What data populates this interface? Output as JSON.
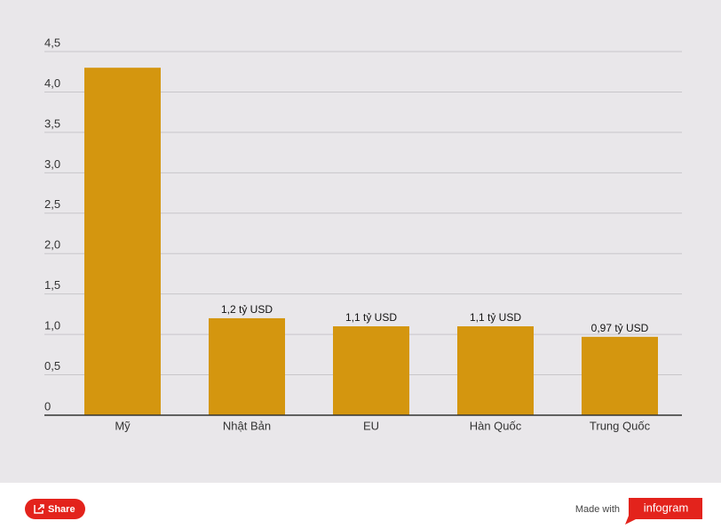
{
  "chart_data": {
    "type": "bar",
    "categories": [
      "Mỹ",
      "Nhật Bản",
      "EU",
      "Hàn Quốc",
      "Trung Quốc"
    ],
    "values": [
      4.3,
      1.2,
      1.1,
      1.1,
      0.97
    ],
    "value_labels": [
      null,
      "1,2 tỷ USD",
      "1,1 tỷ USD",
      "1,1 tỷ USD",
      "0,97 tỷ USD"
    ],
    "color": "#d4960f",
    "ylim": [
      0,
      4.5
    ],
    "yticks": [
      0,
      {
        "value": 0.5,
        "label": "0,5"
      },
      {
        "value": 1,
        "label": "1,0"
      },
      {
        "value": 1.5,
        "label": "1,5"
      },
      {
        "value": 2,
        "label": "2,0"
      },
      {
        "value": 2.5,
        "label": "2,5"
      },
      {
        "value": 3,
        "label": "3,0"
      },
      {
        "value": 3.5,
        "label": "3,5"
      },
      {
        "value": 4,
        "label": "4,0"
      },
      {
        "value": 4.5,
        "label": "4,5"
      }
    ],
    "grid": true
  },
  "footer": {
    "share": "Share",
    "made_with": "Made with",
    "brand": "infogram"
  }
}
